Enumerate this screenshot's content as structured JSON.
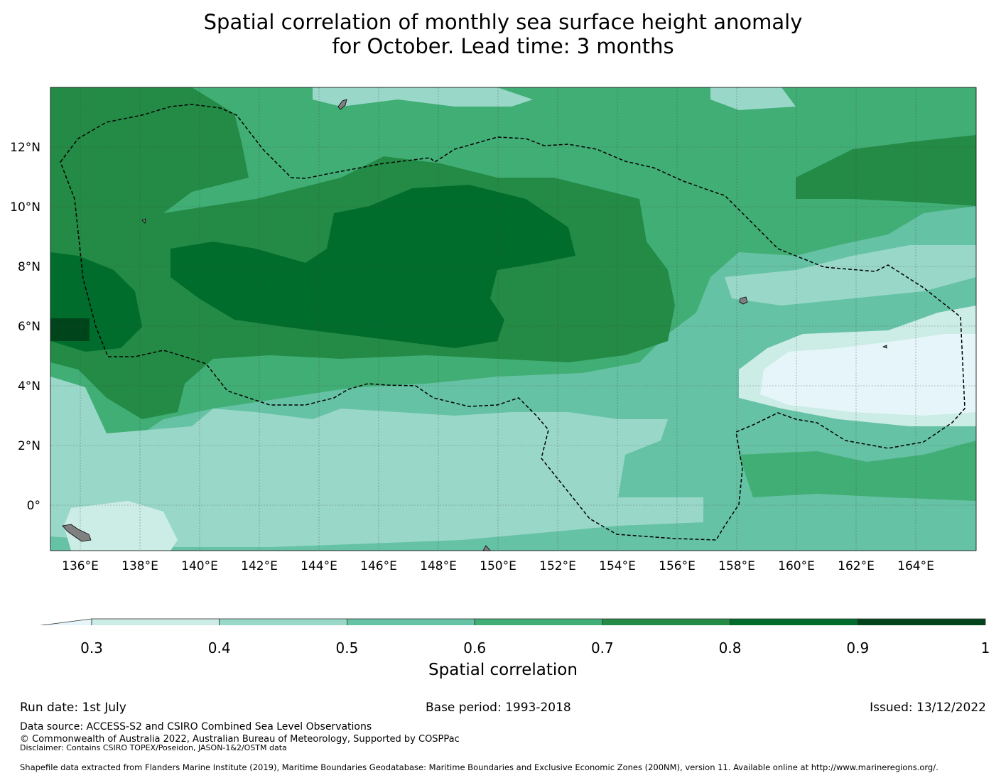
{
  "title": {
    "line1": "Spatial correlation of monthly sea surface height anomaly",
    "line2": "for October. Lead time: 3 months"
  },
  "map": {
    "lon_labels": [
      "136°E",
      "138°E",
      "140°E",
      "142°E",
      "144°E",
      "146°E",
      "148°E",
      "150°E",
      "152°E",
      "154°E",
      "156°E",
      "158°E",
      "160°E",
      "162°E",
      "164°E"
    ],
    "lat_labels": [
      "12°N",
      "10°N",
      "8°N",
      "6°N",
      "4°N",
      "2°N",
      "0°"
    ],
    "land_color": "#808080",
    "eez_line_style": "dashed"
  },
  "colorbar": {
    "label": "Spatial correlation",
    "ticks": [
      "0.3",
      "0.4",
      "0.5",
      "0.6",
      "0.7",
      "0.8",
      "0.9",
      "1"
    ],
    "colors": [
      "#e5f5f9",
      "#ccece6",
      "#99d8c9",
      "#66c2a4",
      "#41ae76",
      "#238b45",
      "#006d2c",
      "#00441b"
    ],
    "extend": "min"
  },
  "footer": {
    "run_date": "Run date: 1st July",
    "base_period": "Base period: 1993-2018",
    "issued": "Issued: 13/12/2022",
    "data_source": "Data source: ACCESS-S2 and CSIRO Combined Sea Level Observations",
    "copyright": "© Commonwealth of Australia 2022, Australian Bureau of Meteorology, Supported by COSPPac",
    "disclaimer": "Disclaimer: Contains CSIRO TOPEX/Poseidon, JASON-1&2/OSTM data",
    "shapefile": "Shapefile data extracted from Flanders Marine Institute (2019), Maritime Boundaries Geodatabase: Maritime Boundaries and Exclusive Economic Zones (200NM), version 11. Available online at http://www.marineregions.org/."
  }
}
